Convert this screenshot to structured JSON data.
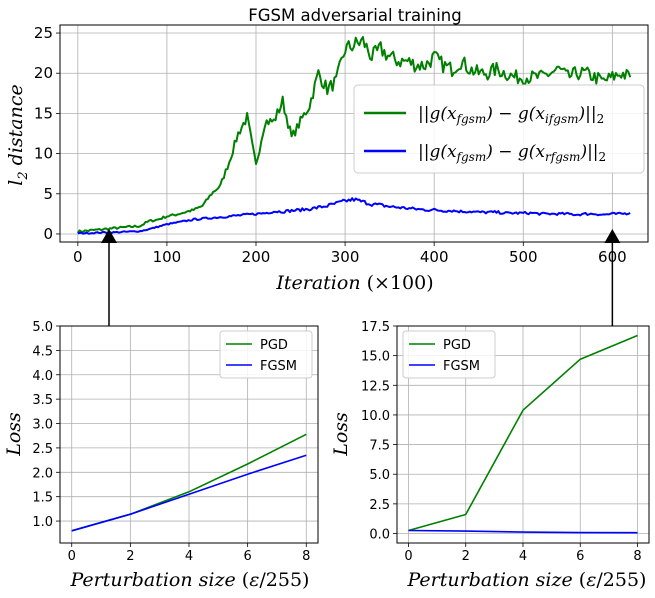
{
  "chart_data": [
    {
      "type": "line",
      "title": "FGSM adversarial training",
      "xlabel": "Iteration (×100)",
      "ylabel": "l2 distance",
      "xlim": [
        -20,
        640
      ],
      "ylim": [
        -1,
        26
      ],
      "xticks": [
        0,
        100,
        200,
        300,
        400,
        500,
        600
      ],
      "yticks": [
        0,
        5,
        10,
        15,
        20,
        25
      ],
      "grid": true,
      "legend_position": "center-right",
      "x_sample_step": 10,
      "series": [
        {
          "name": "||g(x_fgsm) − g(x_ifgsm)||_2",
          "color": "#008000",
          "x": [
            0,
            10,
            20,
            30,
            40,
            50,
            60,
            70,
            80,
            90,
            100,
            110,
            120,
            130,
            140,
            150,
            160,
            170,
            180,
            190,
            200,
            210,
            220,
            230,
            240,
            250,
            260,
            270,
            280,
            290,
            300,
            310,
            320,
            330,
            340,
            350,
            360,
            370,
            380,
            390,
            400,
            410,
            420,
            430,
            440,
            450,
            460,
            470,
            480,
            490,
            500,
            510,
            520,
            530,
            540,
            550,
            560,
            570,
            580,
            590,
            600,
            610,
            620
          ],
          "values": [
            0.3,
            0.4,
            0.5,
            0.6,
            0.7,
            0.8,
            0.9,
            1.0,
            1.6,
            1.8,
            2.2,
            2.4,
            2.7,
            3.0,
            3.5,
            5.0,
            6.0,
            9.0,
            12.5,
            14.5,
            8.5,
            14.0,
            14.0,
            16.5,
            12.0,
            14.0,
            16.0,
            20.0,
            18.0,
            19.0,
            23.0,
            23.5,
            24.0,
            22.0,
            23.0,
            22.0,
            21.5,
            21.5,
            21.0,
            21.0,
            22.0,
            21.0,
            20.5,
            21.5,
            20.5,
            20.0,
            20.0,
            20.5,
            20.0,
            19.5,
            19.5,
            19.5,
            19.5,
            20.0,
            20.5,
            19.5,
            20.0,
            20.0,
            19.5,
            19.0,
            19.5,
            20.0,
            19.5
          ]
        },
        {
          "name": "||g(x_fgsm) − g(x_rfgsm)||_2",
          "color": "#0000ff",
          "x": [
            0,
            10,
            20,
            30,
            40,
            50,
            60,
            70,
            80,
            90,
            100,
            110,
            120,
            130,
            140,
            150,
            160,
            170,
            180,
            190,
            200,
            210,
            220,
            230,
            240,
            250,
            260,
            270,
            280,
            290,
            300,
            310,
            320,
            330,
            340,
            350,
            360,
            370,
            380,
            390,
            400,
            410,
            420,
            430,
            440,
            450,
            460,
            470,
            480,
            490,
            500,
            510,
            520,
            530,
            540,
            550,
            560,
            570,
            580,
            590,
            600,
            610,
            620
          ],
          "values": [
            0.1,
            0.1,
            0.15,
            0.2,
            0.2,
            0.25,
            0.3,
            0.35,
            0.6,
            0.9,
            1.2,
            1.4,
            1.6,
            1.8,
            1.9,
            2.0,
            2.1,
            2.2,
            2.3,
            2.4,
            2.5,
            2.6,
            2.8,
            2.8,
            2.9,
            3.0,
            3.1,
            3.3,
            3.5,
            3.8,
            4.1,
            4.3,
            4.0,
            3.7,
            3.6,
            3.4,
            3.3,
            3.2,
            3.1,
            3.0,
            3.0,
            2.9,
            2.9,
            2.8,
            2.8,
            2.7,
            2.7,
            2.7,
            2.6,
            2.6,
            2.6,
            2.6,
            2.5,
            2.5,
            2.5,
            2.5,
            2.4,
            2.5,
            2.5,
            2.4,
            2.5,
            2.5,
            2.6
          ]
        }
      ],
      "arrows_at_x": [
        35,
        600
      ]
    },
    {
      "type": "line",
      "xlabel": "Perturbation size (ε/255)",
      "ylabel": "Loss",
      "xlim": [
        -0.4,
        8.4
      ],
      "ylim": [
        0.55,
        5.0
      ],
      "xticks": [
        0,
        2,
        4,
        6,
        8
      ],
      "yticks": [
        1.0,
        1.5,
        2.0,
        2.5,
        3.0,
        3.5,
        4.0,
        4.5,
        5.0
      ],
      "grid": true,
      "legend_position": "top-right",
      "series": [
        {
          "name": "PGD",
          "color": "#008000",
          "x": [
            0,
            2,
            4,
            6,
            8
          ],
          "values": [
            0.8,
            1.14,
            1.6,
            2.17,
            2.78
          ]
        },
        {
          "name": "FGSM",
          "color": "#0000ff",
          "x": [
            0,
            2,
            4,
            6,
            8
          ],
          "values": [
            0.8,
            1.14,
            1.55,
            1.96,
            2.35
          ]
        }
      ]
    },
    {
      "type": "line",
      "xlabel": "Perturbation size (ε/255)",
      "ylabel": "Loss",
      "xlim": [
        -0.4,
        8.4
      ],
      "ylim": [
        -0.8,
        17.5
      ],
      "xticks": [
        0,
        2,
        4,
        6,
        8
      ],
      "yticks": [
        0.0,
        2.5,
        5.0,
        7.5,
        10.0,
        12.5,
        15.0,
        17.5
      ],
      "grid": true,
      "legend_position": "top-left",
      "series": [
        {
          "name": "PGD",
          "color": "#008000",
          "x": [
            0,
            2,
            4,
            6,
            8
          ],
          "values": [
            0.25,
            1.6,
            10.4,
            14.7,
            16.7
          ]
        },
        {
          "name": "FGSM",
          "color": "#0000ff",
          "x": [
            0,
            2,
            4,
            6,
            8
          ],
          "values": [
            0.25,
            0.2,
            0.12,
            0.08,
            0.07
          ]
        }
      ]
    }
  ]
}
